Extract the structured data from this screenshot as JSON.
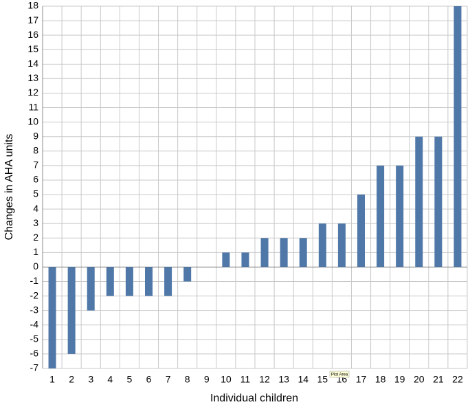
{
  "chart_data": {
    "type": "bar",
    "x_label": "Individual children",
    "y_label": "Changes in AHA units",
    "tooltip": "Plot Area",
    "categories": [
      "1",
      "2",
      "3",
      "4",
      "5",
      "6",
      "7",
      "8",
      "9",
      "10",
      "11",
      "12",
      "13",
      "14",
      "15",
      "16",
      "17",
      "18",
      "19",
      "20",
      "21",
      "22"
    ],
    "values": [
      -7,
      -6,
      -3,
      -2,
      -2,
      -2,
      -2,
      -1,
      0,
      1,
      1,
      2,
      2,
      2,
      3,
      3,
      5,
      7,
      7,
      9,
      9,
      18
    ],
    "color": "#4f78a8",
    "ylim": [
      -7,
      18
    ],
    "yticks": [
      -7,
      -6,
      -5,
      -4,
      -3,
      -2,
      -1,
      0,
      1,
      2,
      3,
      4,
      5,
      6,
      7,
      8,
      9,
      10,
      11,
      12,
      13,
      14,
      15,
      16,
      17,
      18
    ],
    "grid": true
  }
}
